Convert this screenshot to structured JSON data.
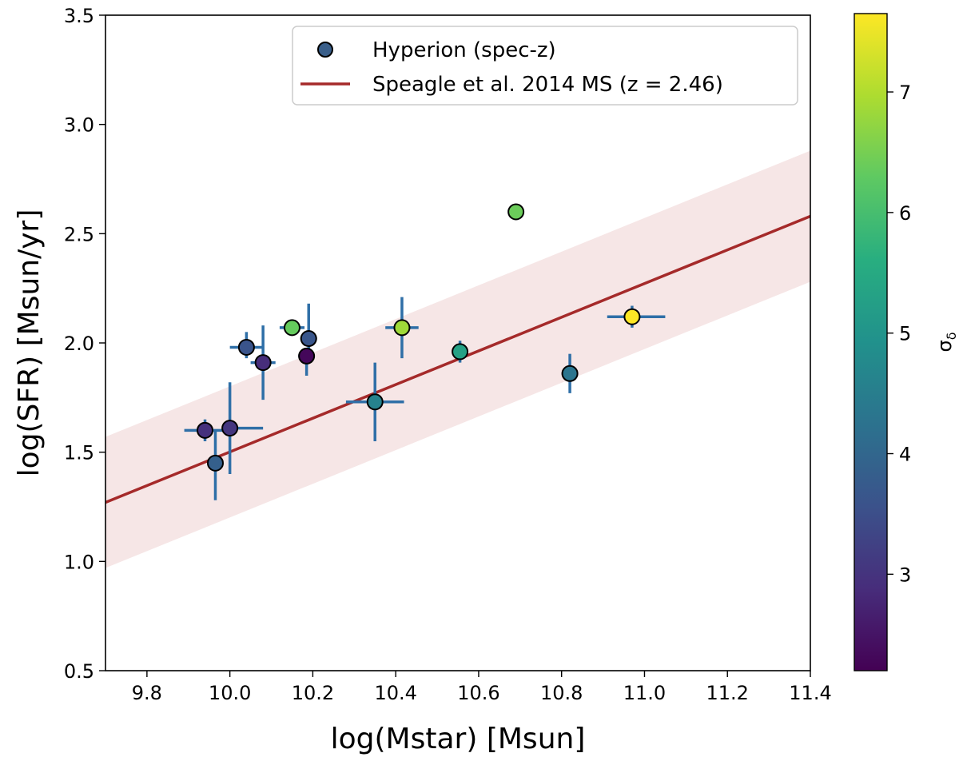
{
  "chart_data": {
    "type": "scatter",
    "title": "",
    "xlabel": "log(Mstar) [Msun]",
    "ylabel": "log(SFR) [Msun/yr]",
    "xlim": [
      9.7,
      11.4
    ],
    "ylim": [
      0.5,
      3.5
    ],
    "xticks": [
      "9.8",
      "10.0",
      "10.2",
      "10.4",
      "10.6",
      "10.8",
      "11.0",
      "11.2",
      "11.4"
    ],
    "yticks": [
      "0.5",
      "1.0",
      "1.5",
      "2.0",
      "2.5",
      "3.0",
      "3.5"
    ],
    "legend": {
      "position": "top-center",
      "entries": [
        "Hyperion (spec-z)",
        "Speagle et al. 2014 MS (z = 2.46)"
      ]
    },
    "colorbar": {
      "label": "σδ",
      "label_main": "σ",
      "label_sub": "δ",
      "range": [
        2.2,
        7.65
      ],
      "ticks": [
        "3",
        "4",
        "5",
        "6",
        "7"
      ],
      "colormap": "viridis"
    },
    "main_sequence": {
      "x0": 9.7,
      "y0": 1.27,
      "x1": 11.4,
      "y1": 2.58,
      "band_offset": 0.3,
      "line_color": "#a52a2a",
      "band_color": "#f6e6e6"
    },
    "series": [
      {
        "name": "Hyperion (spec-z)",
        "error_color": "#2f6fa7",
        "points": [
          {
            "x": 9.94,
            "y": 1.6,
            "xerr": [
              0.05,
              0.05
            ],
            "yerr": [
              0.05,
              0.05
            ],
            "c": 2.95
          },
          {
            "x": 9.965,
            "y": 1.45,
            "xerr": [
              0.0,
              0.0
            ],
            "yerr": [
              0.17,
              0.15
            ],
            "c": 3.85
          },
          {
            "x": 10.0,
            "y": 1.61,
            "xerr": [
              0.0,
              0.08
            ],
            "yerr": [
              0.21,
              0.21
            ],
            "c": 3.05
          },
          {
            "x": 10.04,
            "y": 1.98,
            "xerr": [
              0.04,
              0.04
            ],
            "yerr": [
              0.05,
              0.07
            ],
            "c": 3.6
          },
          {
            "x": 10.08,
            "y": 1.91,
            "xerr": [
              0.03,
              0.03
            ],
            "yerr": [
              0.17,
              0.17
            ],
            "c": 2.9
          },
          {
            "x": 10.15,
            "y": 2.07,
            "xerr": [
              0.03,
              0.03
            ],
            "yerr": [
              0.0,
              0.0
            ],
            "c": 6.35
          },
          {
            "x": 10.185,
            "y": 1.94,
            "xerr": [
              0.02,
              0.02
            ],
            "yerr": [
              0.09,
              0.0
            ],
            "c": 2.3
          },
          {
            "x": 10.19,
            "y": 2.02,
            "xerr": [
              0.02,
              0.02
            ],
            "yerr": [
              0.05,
              0.16
            ],
            "c": 3.65
          },
          {
            "x": 10.35,
            "y": 1.73,
            "xerr": [
              0.07,
              0.07
            ],
            "yerr": [
              0.18,
              0.18
            ],
            "c": 4.6
          },
          {
            "x": 10.415,
            "y": 2.07,
            "xerr": [
              0.04,
              0.04
            ],
            "yerr": [
              0.14,
              0.14
            ],
            "c": 6.85
          },
          {
            "x": 10.555,
            "y": 1.96,
            "xerr": [
              0.0,
              0.0
            ],
            "yerr": [
              0.05,
              0.05
            ],
            "c": 5.3
          },
          {
            "x": 10.69,
            "y": 2.6,
            "xerr": [
              0.0,
              0.0
            ],
            "yerr": [
              0.0,
              0.0
            ],
            "c": 6.4
          },
          {
            "x": 10.82,
            "y": 1.86,
            "xerr": [
              0.02,
              0.02
            ],
            "yerr": [
              0.09,
              0.09
            ],
            "c": 4.3
          },
          {
            "x": 10.97,
            "y": 2.12,
            "xerr": [
              0.06,
              0.08
            ],
            "yerr": [
              0.05,
              0.05
            ],
            "c": 7.65
          }
        ]
      }
    ]
  }
}
